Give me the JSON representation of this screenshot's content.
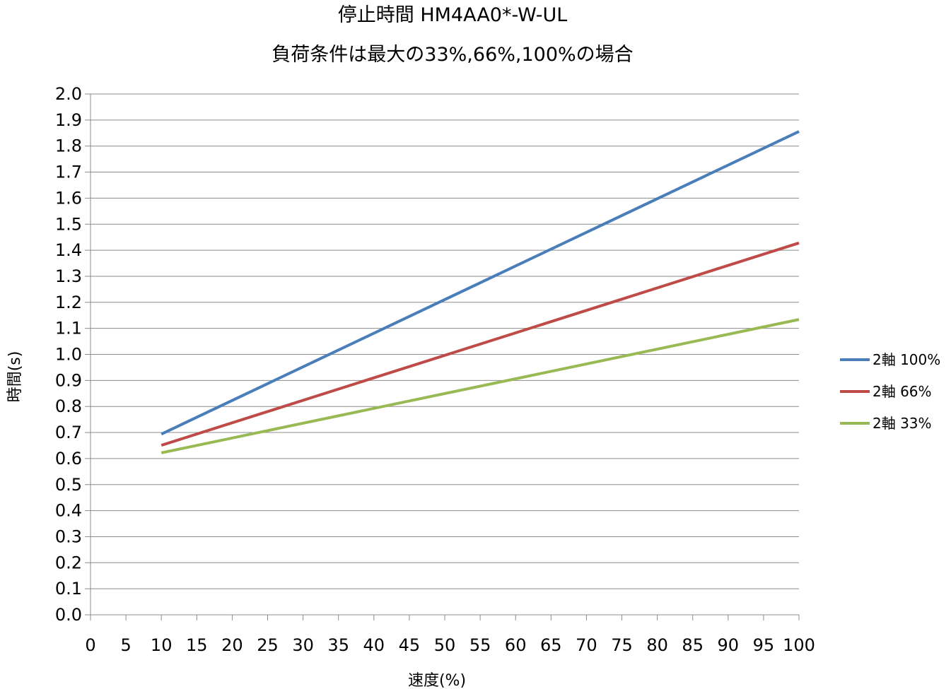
{
  "chart_data": {
    "type": "line",
    "title": "停止時間 HM4AA0*-W-UL",
    "subtitle": "負荷条件は最大の33%,66%,100%の場合",
    "xlabel": "速度(%)",
    "ylabel": "時間(s)",
    "xlim": [
      0,
      100
    ],
    "ylim": [
      0.0,
      2.0
    ],
    "x_ticks": [
      "0",
      "5",
      "10",
      "15",
      "20",
      "25",
      "30",
      "35",
      "40",
      "45",
      "50",
      "55",
      "60",
      "65",
      "70",
      "75",
      "80",
      "85",
      "90",
      "95",
      "100"
    ],
    "y_ticks": [
      "0.0",
      "0.1",
      "0.2",
      "0.3",
      "0.4",
      "0.5",
      "0.6",
      "0.7",
      "0.8",
      "0.9",
      "1.0",
      "1.1",
      "1.2",
      "1.3",
      "1.4",
      "1.5",
      "1.6",
      "1.7",
      "1.8",
      "1.9",
      "2.0"
    ],
    "grid": "horizontal",
    "legend_position": "right",
    "series": [
      {
        "name": "2軸 100%",
        "color": "#4a7ebb",
        "x": [
          10,
          100
        ],
        "y": [
          0.694,
          1.856
        ]
      },
      {
        "name": "2軸 66%",
        "color": "#be4b48",
        "x": [
          10,
          100
        ],
        "y": [
          0.651,
          1.428
        ]
      },
      {
        "name": "2軸 33%",
        "color": "#98b954",
        "x": [
          10,
          100
        ],
        "y": [
          0.622,
          1.134
        ]
      }
    ]
  }
}
